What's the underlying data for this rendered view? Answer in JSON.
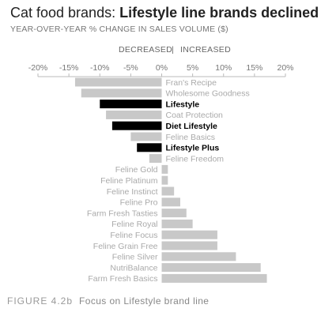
{
  "title": {
    "prefix": "Cat food brands: ",
    "bold": "Lifestyle line brands declined"
  },
  "subtitle": "YEAR-OVER-YEAR % CHANGE IN SALES VOLUME ($)",
  "direction_labels": {
    "decreased": "DECREASED",
    "separator": "|",
    "increased": "INCREASED"
  },
  "caption": {
    "figure": "FIGURE 4.2b",
    "text": "Focus on Lifestyle brand line"
  },
  "colors": {
    "highlight": "#000000",
    "default_bar": "#c8c8c8",
    "highlight_label": "#000000",
    "default_label": "#aaaaaa"
  },
  "chart_data": {
    "type": "bar",
    "orientation": "horizontal",
    "xlim": [
      -20,
      20
    ],
    "x_ticks": [
      "-20%",
      "-15%",
      "-10%",
      "-5%",
      "0%",
      "5%",
      "10%",
      "15%",
      "20%"
    ],
    "x_tick_values": [
      -20,
      -15,
      -10,
      -5,
      0,
      5,
      10,
      15,
      20
    ],
    "grid": false,
    "categories": [
      "Fran's Recipe",
      "Wholesome Goodness",
      "Lifestyle",
      "Coat Protection",
      "Diet Lifestyle",
      "Feline Basics",
      "Lifestyle Plus",
      "Feline Freedom",
      "Feline Gold",
      "Feline Platinum",
      "Feline Instinct",
      "Feline Pro",
      "Farm Fresh Tasties",
      "Feline Royal",
      "Feline Focus",
      "Feline Grain Free",
      "Feline Silver",
      "NutriBalance",
      "Farm Fresh Basics"
    ],
    "values": [
      -14,
      -13,
      -10,
      -9,
      -8,
      -5,
      -4,
      -2,
      1,
      1,
      2,
      3,
      4,
      5,
      9,
      9,
      12,
      16,
      17
    ],
    "highlighted": [
      false,
      false,
      true,
      false,
      true,
      false,
      true,
      false,
      false,
      false,
      false,
      false,
      false,
      false,
      false,
      false,
      false,
      false,
      false
    ]
  }
}
